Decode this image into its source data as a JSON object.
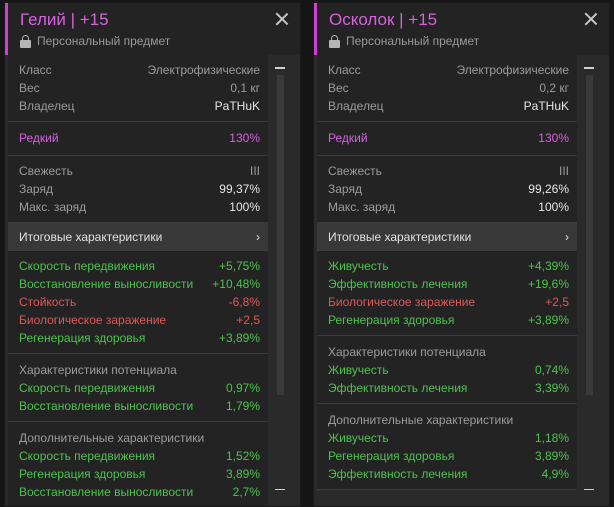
{
  "panels": [
    {
      "title": "Гелий | +15",
      "subtitle": "Персональный предмет",
      "info": [
        {
          "k": "Класс",
          "v": "Электрофизические"
        },
        {
          "k": "Вес",
          "v": "0,1 кг"
        },
        {
          "k": "Владелец",
          "v": "PaTHuK"
        }
      ],
      "rarity": {
        "k": "Редкий",
        "v": "130%"
      },
      "state": [
        {
          "k": "Свежесть",
          "v": "III"
        },
        {
          "k": "Заряд",
          "v": "99,37%"
        },
        {
          "k": "Макс. заряд",
          "v": "100%"
        }
      ],
      "summary_label": "Итоговые характеристики",
      "totals": [
        {
          "k": "Скорость передвижения",
          "v": "+5,75%",
          "c": "g"
        },
        {
          "k": "Восстановление выносливости",
          "v": "+10,48%",
          "c": "g"
        },
        {
          "k": "Стойкость",
          "v": "-6,8%",
          "c": "r"
        },
        {
          "k": "Биологическое заражение",
          "v": "+2,5",
          "c": "r"
        },
        {
          "k": "Регенерация здоровья",
          "v": "+3,89%",
          "c": "g"
        }
      ],
      "potential_title": "Характеристики потенциала",
      "potential": [
        {
          "k": "Скорость передвижения",
          "v": "0,97%"
        },
        {
          "k": "Восстановление выносливости",
          "v": "1,79%"
        }
      ],
      "extra_title": "Дополнительные характеристики",
      "extra": [
        {
          "k": "Скорость передвижения",
          "v": "1,52%"
        },
        {
          "k": "Регенерация здоровья",
          "v": "3,89%"
        },
        {
          "k": "Восстановление выносливости",
          "v": "2,7%"
        }
      ]
    },
    {
      "title": "Осколок | +15",
      "subtitle": "Персональный предмет",
      "info": [
        {
          "k": "Класс",
          "v": "Электрофизические"
        },
        {
          "k": "Вес",
          "v": "0,2 кг"
        },
        {
          "k": "Владелец",
          "v": "PaTHuK"
        }
      ],
      "rarity": {
        "k": "Редкий",
        "v": "130%"
      },
      "state": [
        {
          "k": "Свежесть",
          "v": "III"
        },
        {
          "k": "Заряд",
          "v": "99,26%"
        },
        {
          "k": "Макс. заряд",
          "v": "100%"
        }
      ],
      "summary_label": "Итоговые характеристики",
      "totals": [
        {
          "k": "Живучесть",
          "v": "+4,39%",
          "c": "g"
        },
        {
          "k": "Эффективность лечения",
          "v": "+19,6%",
          "c": "g"
        },
        {
          "k": "Биологическое заражение",
          "v": "+2,5",
          "c": "r"
        },
        {
          "k": "Регенерация здоровья",
          "v": "+3,89%",
          "c": "g"
        }
      ],
      "potential_title": "Характеристики потенциала",
      "potential": [
        {
          "k": "Живучесть",
          "v": "0,74%"
        },
        {
          "k": "Эффективность лечения",
          "v": "3,39%"
        }
      ],
      "extra_title": "Дополнительные характеристики",
      "extra": [
        {
          "k": "Живучесть",
          "v": "1,18%"
        },
        {
          "k": "Регенерация здоровья",
          "v": "3,89%"
        },
        {
          "k": "Эффективность лечения",
          "v": "4,9%"
        }
      ]
    }
  ],
  "colors": {
    "accent": "#d662de",
    "positive": "#4ec34e",
    "negative": "#e05858",
    "bg": "#232323"
  },
  "icons": {
    "close": "close-icon",
    "lock": "lock-icon",
    "chevron": "chevron-right-icon"
  }
}
